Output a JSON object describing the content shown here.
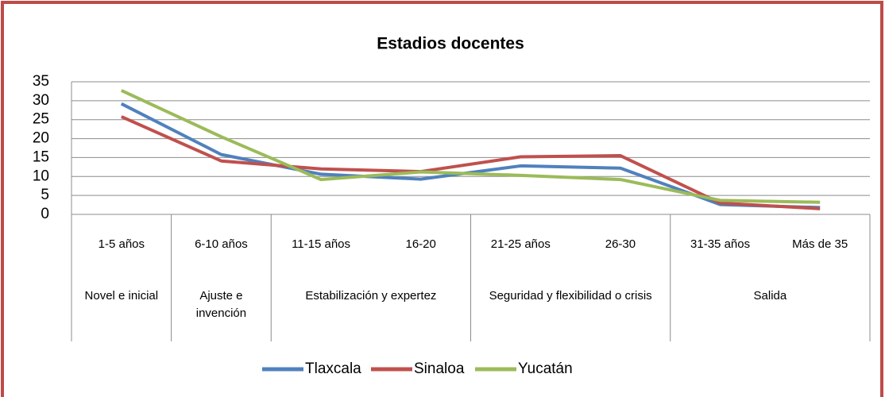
{
  "chart_data": {
    "type": "line",
    "title": "Estadios docentes",
    "categories": [
      "1-5 años",
      "6-10 años",
      "11-15 años",
      "16-20",
      "21-25 años",
      "26-30",
      "31-35 años",
      "Más de 35"
    ],
    "groups": [
      "Novel  e inicial",
      "Ajuste e invención",
      "Estabilización y expertez",
      null,
      "Seguridad y flexibilidad o crisis",
      null,
      "Salida",
      null
    ],
    "series": [
      {
        "name": "Tlaxcala",
        "color": "#4f81bd",
        "values": [
          29.2,
          15.8,
          10.6,
          9.3,
          12.8,
          12.2,
          2.6,
          1.8
        ]
      },
      {
        "name": "Sinaloa",
        "color": "#c0504d",
        "values": [
          25.8,
          14.1,
          12.0,
          11.3,
          15.2,
          15.5,
          3.0,
          1.5
        ]
      },
      {
        "name": "Yucatán",
        "color": "#9bbb59",
        "values": [
          32.7,
          20.5,
          9.2,
          11.2,
          10.3,
          9.2,
          3.7,
          3.2
        ]
      }
    ],
    "ylim": [
      0,
      35
    ],
    "yticks": [
      0,
      5,
      10,
      15,
      20,
      25,
      30,
      35
    ],
    "grid": true,
    "legend": "bottom"
  }
}
